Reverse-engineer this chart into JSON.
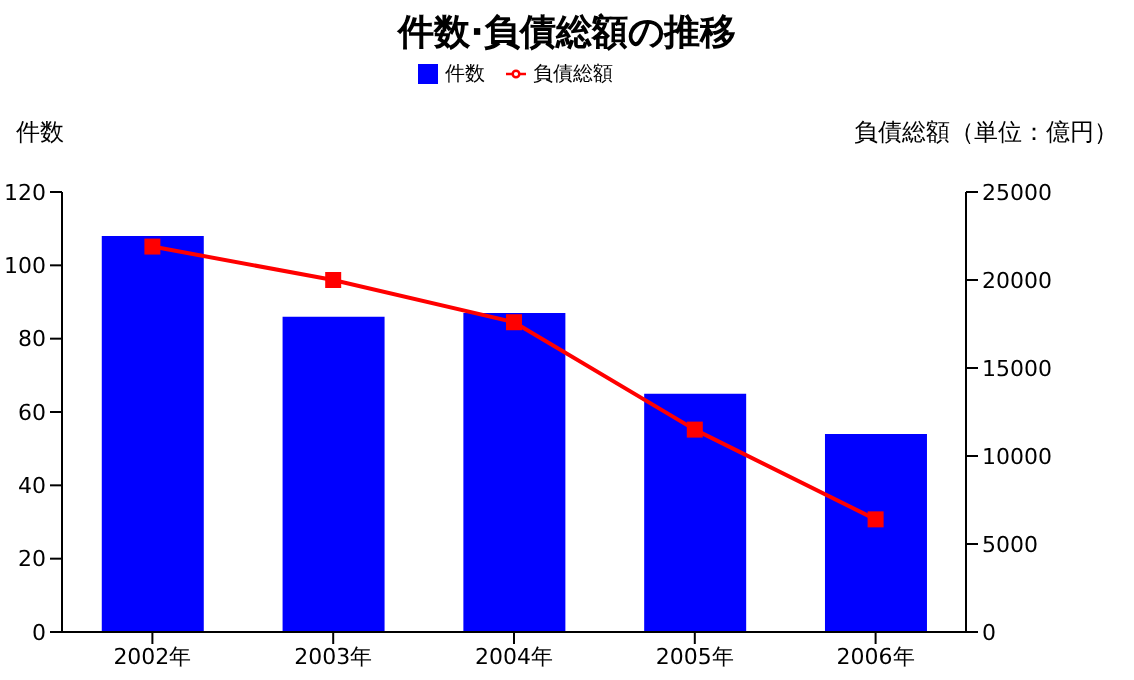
{
  "chart_data": {
    "type": "bar",
    "title": "件数·負債総額の推移",
    "ylabel": "件数",
    "y2label": "負債総額（単位：億円）",
    "categories": [
      "2002年",
      "2003年",
      "2004年",
      "2005年",
      "2006年"
    ],
    "series": [
      {
        "name": "件数",
        "color": "#0000ff",
        "values": [
          108,
          86,
          87,
          65,
          54
        ]
      },
      {
        "name": "負債総額",
        "type": "line",
        "axis": "y2",
        "color": "#ff0000",
        "marker": "square",
        "values": [
          21900,
          20000,
          17600,
          11500,
          6400
        ]
      }
    ],
    "ylim": [
      0,
      120
    ],
    "yticks": [
      0,
      20,
      40,
      60,
      80,
      100,
      120
    ],
    "y2lim": [
      0,
      25000
    ],
    "y2ticks": [
      0,
      5000,
      10000,
      15000,
      20000,
      25000
    ],
    "grid": false,
    "legend": "top"
  }
}
